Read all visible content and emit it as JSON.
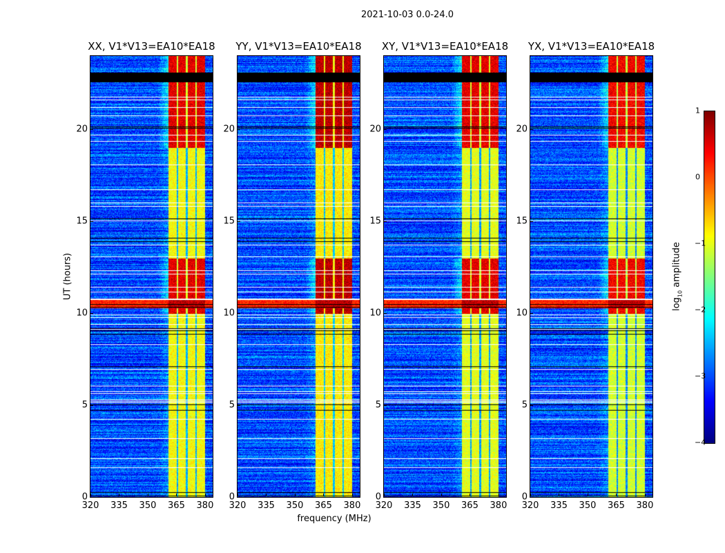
{
  "chart_data": {
    "type": "heatmap",
    "title": "2021-10-03 0.0-24.0",
    "xlabel": "frequency (MHz)",
    "ylabel": "UT (hours)",
    "xlim": [
      320,
      384
    ],
    "ylim": [
      0,
      24
    ],
    "xticks": [
      "320",
      "335",
      "350",
      "365",
      "380"
    ],
    "xtick_values": [
      320,
      335,
      350,
      365,
      380
    ],
    "yticks": [
      "0",
      "5",
      "10",
      "15",
      "20"
    ],
    "ytick_values": [
      0,
      5,
      10,
      15,
      20
    ],
    "panels": [
      {
        "title": "XX, V1*V13=EA10*EA18",
        "band_level": -0.9,
        "hot_level": 0.5
      },
      {
        "title": "YY, V1*V13=EA10*EA18",
        "band_level": -0.8,
        "hot_level": 0.7
      },
      {
        "title": "XY, V1*V13=EA10*EA18",
        "band_level": -1.0,
        "hot_level": 0.5
      },
      {
        "title": "YX, V1*V13=EA10*EA18",
        "band_level": -1.1,
        "hot_level": 0.4
      }
    ],
    "background_level": -3.0,
    "rfi_band_mhz": [
      360.5,
      380
    ],
    "hot_hours": [
      [
        10.0,
        13.0
      ],
      [
        19.0,
        24.0
      ]
    ],
    "strong_rfi_hours": [
      [
        10.3,
        10.8
      ]
    ],
    "colorbar": {
      "label": "log10 amplitude",
      "label_main": "log",
      "label_sub": "10",
      "label_rest": " amplitude",
      "range": [
        -4,
        1
      ],
      "ticks": [
        "1",
        "0",
        "−1",
        "−2",
        "−3",
        "−4"
      ],
      "tick_values": [
        1,
        0,
        -1,
        -2,
        -3,
        -4
      ],
      "colormap": "jet"
    }
  }
}
